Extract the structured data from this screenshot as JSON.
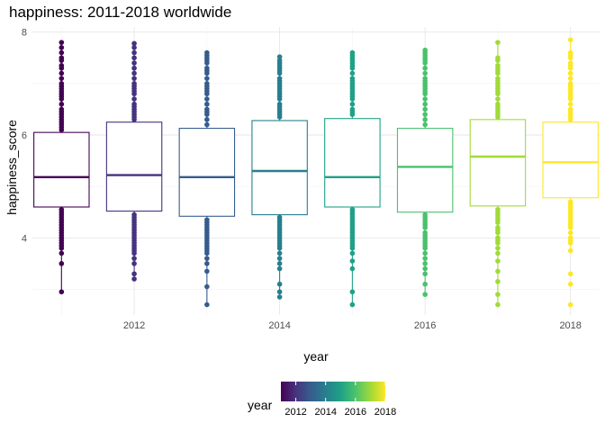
{
  "chart_data": {
    "type": "box",
    "title": "happiness: 2011-2018 worldwide",
    "xlabel": "year",
    "ylabel": "happiness_score",
    "xlim": [
      2010.6,
      2018.4
    ],
    "ylim": [
      2.5,
      8.1
    ],
    "x_ticks": [
      2012,
      2014,
      2016,
      2018
    ],
    "y_ticks": [
      4,
      6,
      8
    ],
    "grid": true,
    "legend": {
      "title": "year",
      "position": "bottom",
      "type": "colorbar",
      "range": [
        2011,
        2018
      ],
      "ticks": [
        2012,
        2014,
        2016,
        2018
      ]
    },
    "series": [
      {
        "year": 2011,
        "color": "#440154",
        "whisker_low": 2.95,
        "q1": 4.6,
        "median": 5.18,
        "q3": 6.05,
        "whisker_high": 7.8,
        "points": [
          7.8,
          7.7,
          7.6,
          7.5,
          7.45,
          7.35,
          7.3,
          7.2,
          7.1,
          7.0,
          6.95,
          6.9,
          6.85,
          6.8,
          6.75,
          6.7,
          6.6,
          6.5,
          6.45,
          6.4,
          6.35,
          6.3,
          6.25,
          6.2,
          6.15,
          6.1,
          4.55,
          4.5,
          4.45,
          4.4,
          4.35,
          4.3,
          4.25,
          4.2,
          4.15,
          4.1,
          4.05,
          4.0,
          3.95,
          3.9,
          3.85,
          3.8,
          3.7,
          3.5,
          2.95
        ]
      },
      {
        "year": 2012,
        "color": "#46327e",
        "whisker_low": 3.2,
        "q1": 4.52,
        "median": 5.22,
        "q3": 6.25,
        "whisker_high": 7.78,
        "points": [
          7.78,
          7.7,
          7.6,
          7.5,
          7.4,
          7.3,
          7.2,
          7.1,
          7.0,
          6.95,
          6.9,
          6.85,
          6.8,
          6.7,
          6.6,
          6.55,
          6.5,
          6.45,
          6.4,
          6.35,
          6.3,
          4.45,
          4.4,
          4.35,
          4.3,
          4.25,
          4.2,
          4.15,
          4.1,
          4.05,
          4.0,
          3.95,
          3.9,
          3.85,
          3.8,
          3.75,
          3.7,
          3.6,
          3.5,
          3.3,
          3.2
        ]
      },
      {
        "year": 2013,
        "color": "#365c8d",
        "whisker_low": 2.7,
        "q1": 4.42,
        "median": 5.18,
        "q3": 6.13,
        "whisker_high": 7.6,
        "points": [
          7.6,
          7.55,
          7.5,
          7.45,
          7.4,
          7.3,
          7.25,
          7.2,
          7.1,
          7.0,
          6.95,
          6.9,
          6.85,
          6.8,
          6.7,
          6.6,
          6.5,
          6.45,
          6.4,
          6.3,
          6.2,
          4.35,
          4.3,
          4.25,
          4.2,
          4.15,
          4.1,
          4.05,
          4.0,
          3.95,
          3.9,
          3.85,
          3.8,
          3.75,
          3.7,
          3.6,
          3.5,
          3.35,
          3.05,
          2.7
        ]
      },
      {
        "year": 2014,
        "color": "#277f8e",
        "whisker_low": 2.85,
        "q1": 4.45,
        "median": 5.3,
        "q3": 6.28,
        "whisker_high": 7.52,
        "points": [
          7.52,
          7.45,
          7.4,
          7.35,
          7.3,
          7.25,
          7.2,
          7.1,
          7.05,
          7.0,
          6.95,
          6.9,
          6.85,
          6.8,
          6.75,
          6.7,
          6.6,
          6.55,
          6.5,
          6.45,
          6.4,
          6.35,
          4.4,
          4.35,
          4.3,
          4.25,
          4.2,
          4.15,
          4.1,
          4.05,
          4.0,
          3.95,
          3.9,
          3.85,
          3.8,
          3.7,
          3.6,
          3.5,
          3.4,
          3.1,
          2.95,
          2.85
        ]
      },
      {
        "year": 2015,
        "color": "#1fa187",
        "whisker_low": 2.7,
        "q1": 4.6,
        "median": 5.18,
        "q3": 6.32,
        "whisker_high": 7.6,
        "points": [
          7.6,
          7.55,
          7.5,
          7.45,
          7.4,
          7.35,
          7.3,
          7.2,
          7.1,
          7.05,
          7.0,
          6.95,
          6.9,
          6.85,
          6.8,
          6.75,
          6.7,
          6.6,
          6.5,
          6.45,
          6.4,
          4.55,
          4.5,
          4.45,
          4.4,
          4.35,
          4.3,
          4.25,
          4.2,
          4.15,
          4.1,
          4.05,
          4.0,
          3.95,
          3.9,
          3.85,
          3.8,
          3.7,
          3.55,
          3.4,
          2.95,
          2.7
        ]
      },
      {
        "year": 2016,
        "color": "#4ac16d",
        "whisker_low": 2.9,
        "q1": 4.5,
        "median": 5.38,
        "q3": 6.13,
        "whisker_high": 7.65,
        "points": [
          7.65,
          7.6,
          7.55,
          7.5,
          7.45,
          7.4,
          7.3,
          7.2,
          7.1,
          7.05,
          7.0,
          6.95,
          6.9,
          6.85,
          6.8,
          6.7,
          6.6,
          6.5,
          6.4,
          6.3,
          6.2,
          4.45,
          4.4,
          4.35,
          4.3,
          4.25,
          4.2,
          4.1,
          4.05,
          4.0,
          3.95,
          3.9,
          3.85,
          3.8,
          3.7,
          3.6,
          3.5,
          3.4,
          3.3,
          3.1,
          2.9
        ]
      },
      {
        "year": 2017,
        "color": "#a0da39",
        "whisker_low": 2.7,
        "q1": 4.62,
        "median": 5.58,
        "q3": 6.3,
        "whisker_high": 7.8,
        "points": [
          7.8,
          7.5,
          7.45,
          7.35,
          7.3,
          7.25,
          7.2,
          7.1,
          7.05,
          7.0,
          6.95,
          6.9,
          6.85,
          6.8,
          6.7,
          6.6,
          6.55,
          6.5,
          6.45,
          6.4,
          6.35,
          4.55,
          4.5,
          4.45,
          4.4,
          4.35,
          4.3,
          4.2,
          4.15,
          4.1,
          4.0,
          3.95,
          3.9,
          3.8,
          3.7,
          3.55,
          3.35,
          3.15,
          2.9,
          2.7
        ]
      },
      {
        "year": 2018,
        "color": "#fde725",
        "whisker_low": 3.75,
        "q1": 4.78,
        "median": 5.47,
        "q3": 6.25,
        "whisker_high": 7.85,
        "points": [
          7.85,
          7.6,
          7.55,
          7.5,
          7.4,
          7.35,
          7.3,
          7.2,
          7.1,
          7.0,
          6.95,
          6.9,
          6.85,
          6.8,
          6.75,
          6.7,
          6.6,
          6.5,
          6.45,
          6.4,
          6.35,
          6.3,
          4.7,
          4.65,
          4.6,
          4.55,
          4.5,
          4.45,
          4.4,
          4.35,
          4.3,
          4.25,
          4.2,
          4.1,
          4.0,
          3.95,
          3.9,
          3.75,
          3.3,
          3.1,
          2.7
        ]
      }
    ]
  }
}
